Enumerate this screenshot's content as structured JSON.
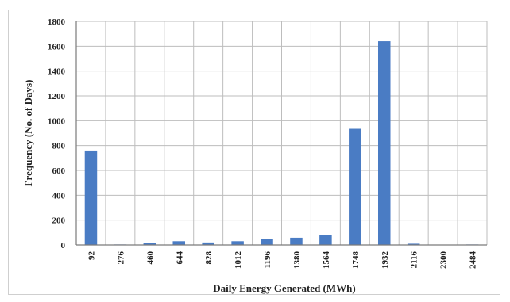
{
  "chart_data": {
    "type": "bar",
    "title": "",
    "xlabel": "Daily Energy Generated (MWh)",
    "ylabel": "Frequency (No. of Days)",
    "ylim": [
      0,
      1800
    ],
    "yticks": [
      0,
      200,
      400,
      600,
      800,
      1000,
      1200,
      1400,
      1600,
      1800
    ],
    "categories": [
      "92",
      "276",
      "460",
      "644",
      "828",
      "1012",
      "1196",
      "1380",
      "1564",
      "1748",
      "1932",
      "2116",
      "2300",
      "2484"
    ],
    "values": [
      760,
      4,
      18,
      30,
      20,
      30,
      50,
      58,
      80,
      935,
      1640,
      10,
      2,
      4
    ],
    "grid": true,
    "legend": "none",
    "colors": {
      "bar": "#4a7cc4",
      "grid": "#bdbdbd",
      "axis": "#7a7a7a"
    }
  }
}
